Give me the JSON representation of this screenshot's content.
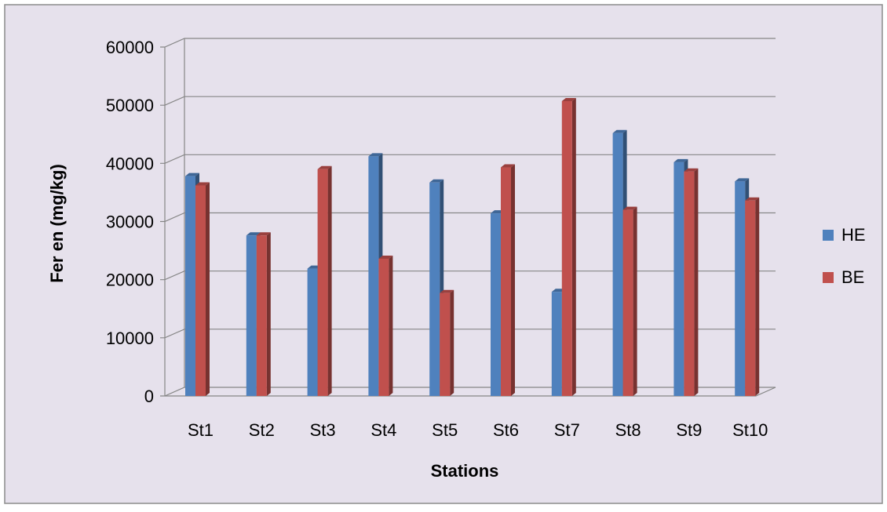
{
  "chart_data": {
    "type": "bar",
    "title": "",
    "xlabel": "Stations",
    "ylabel": "Fer en (mg/kg)",
    "categories": [
      "St1",
      "St2",
      "St3",
      "St4",
      "St5",
      "St6",
      "St7",
      "St8",
      "St9",
      "St10"
    ],
    "series": [
      {
        "name": "HE",
        "color": "#4f81bd",
        "values": [
          37800,
          27600,
          21900,
          41200,
          36700,
          31400,
          17900,
          45200,
          40200,
          36900
        ]
      },
      {
        "name": "BE",
        "color": "#c0504d",
        "values": [
          36200,
          27600,
          39000,
          23600,
          17700,
          39300,
          50700,
          32000,
          38600,
          33600
        ]
      }
    ],
    "ylim": [
      0,
      60000
    ],
    "yticks": [
      0,
      10000,
      20000,
      30000,
      40000,
      50000,
      60000
    ],
    "grid": true,
    "legend_position": "right",
    "style": "3d-clustered-column"
  },
  "background_color": "#e6e1ec",
  "border_color": "#8c8c8c"
}
